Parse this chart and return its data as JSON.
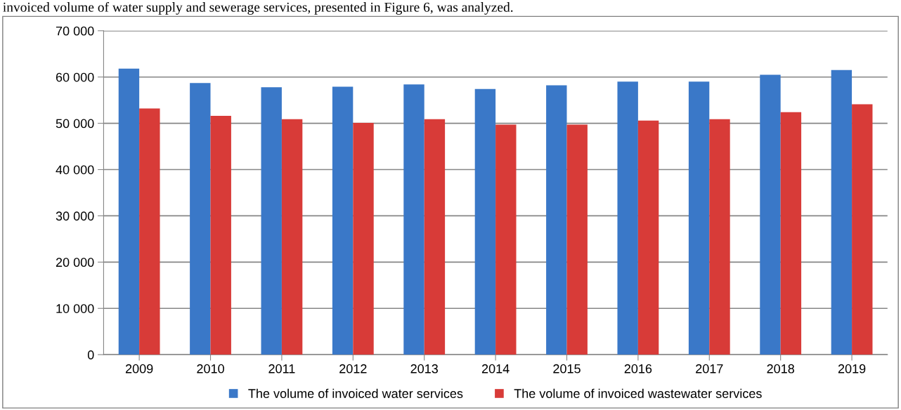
{
  "chart_data": {
    "type": "bar",
    "categories": [
      "2009",
      "2010",
      "2011",
      "2012",
      "2013",
      "2014",
      "2015",
      "2016",
      "2017",
      "2018",
      "2019"
    ],
    "series": [
      {
        "name": "The volume of invoiced water services",
        "color": "#3a78c8",
        "values": [
          61800,
          58700,
          57800,
          57900,
          58400,
          57400,
          58200,
          59000,
          59000,
          60500,
          61500
        ]
      },
      {
        "name": "The volume of invoiced wastewater services",
        "color": "#d83b38",
        "values": [
          53200,
          51600,
          50900,
          50100,
          50900,
          49700,
          49700,
          50600,
          50900,
          52400,
          54100
        ]
      }
    ],
    "ylim": [
      0,
      70000
    ],
    "yticks": [
      {
        "value": 0,
        "label": "0"
      },
      {
        "value": 10000,
        "label": "10 000"
      },
      {
        "value": 20000,
        "label": "20 000"
      },
      {
        "value": 30000,
        "label": "30 000"
      },
      {
        "value": 40000,
        "label": "40 000"
      },
      {
        "value": 50000,
        "label": "50 000"
      },
      {
        "value": 60000,
        "label": "60 000"
      },
      {
        "value": 70000,
        "label": "70 000"
      }
    ],
    "grid": "y",
    "legend": "bottom",
    "annotations": [
      "invoiced volume of water supply and sewerage services, presented in Figure 6, was analyzed."
    ]
  }
}
